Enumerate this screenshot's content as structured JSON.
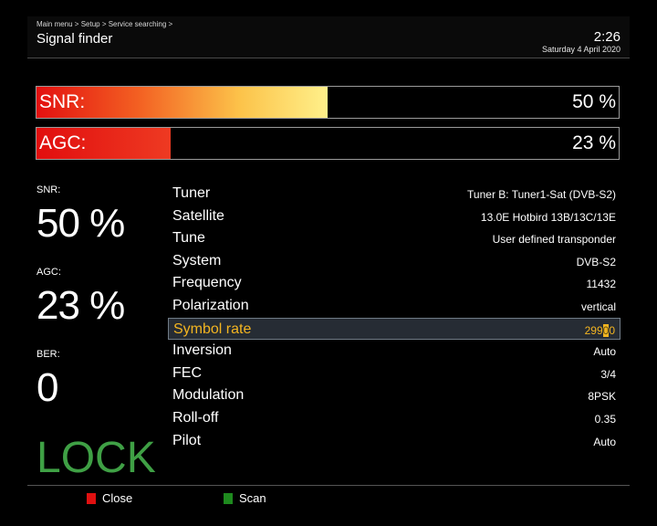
{
  "header": {
    "breadcrumb": "Main menu > Setup > Service searching >",
    "title": "Signal finder",
    "time": "2:26",
    "date": "Saturday  4 April 2020"
  },
  "bars": {
    "snr": {
      "label": "SNR:",
      "value": "50 %",
      "fraction": 0.5
    },
    "agc": {
      "label": "AGC:",
      "value": "23 %",
      "fraction": 0.23
    }
  },
  "side": {
    "snr_label": "SNR:",
    "snr_value": "50 %",
    "agc_label": "AGC:",
    "agc_value": "23 %",
    "ber_label": "BER:",
    "ber_value": "0",
    "lock": "LOCK"
  },
  "info": [
    {
      "label": "Tuner",
      "value": "Tuner B: Tuner1-Sat (DVB-S2)"
    },
    {
      "label": "Satellite",
      "value": "13.0E Hotbird 13B/13C/13E"
    },
    {
      "label": "Tune",
      "value": "User defined transponder"
    },
    {
      "label": "System",
      "value": "DVB-S2"
    },
    {
      "label": "Frequency",
      "value": "11432"
    },
    {
      "label": "Polarization",
      "value": "vertical"
    },
    {
      "label": "Symbol rate",
      "value_before": "299",
      "value_cursor": "0",
      "value_after": "0"
    },
    {
      "label": "Inversion",
      "value": "Auto"
    },
    {
      "label": "FEC",
      "value": "3/4"
    },
    {
      "label": "Modulation",
      "value": "8PSK"
    },
    {
      "label": "Roll-off",
      "value": "0.35"
    },
    {
      "label": "Pilot",
      "value": "Auto"
    }
  ],
  "footer": {
    "close_label": "Close",
    "close_color": "#e01010",
    "scan_label": "Scan",
    "scan_color": "#1e8a1e"
  }
}
